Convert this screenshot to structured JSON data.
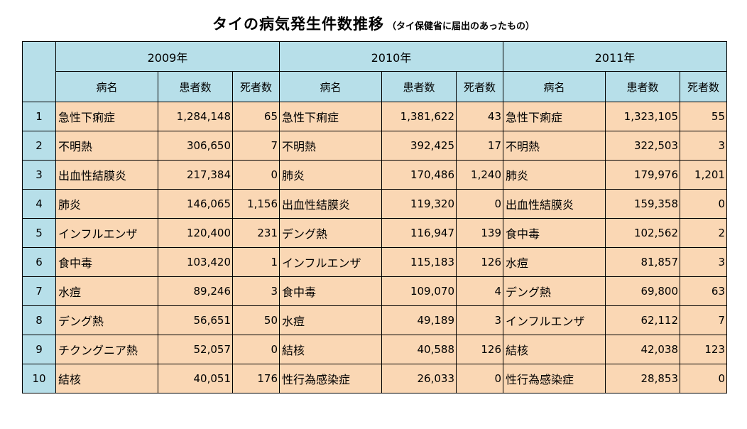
{
  "title": "タイの病気発生件数推移",
  "subtitle": "（タイ保健省に届出のあったもの）",
  "years": [
    "2009年",
    "2010年",
    "2011年"
  ],
  "col_headers": {
    "disease": "病名",
    "patients": "患者数",
    "deaths": "死者数"
  },
  "rows": [
    {
      "rank": "1",
      "y2009": {
        "name": "急性下痢症",
        "patients": "1,284,148",
        "deaths": "65"
      },
      "y2010": {
        "name": "急性下痢症",
        "patients": "1,381,622",
        "deaths": "43"
      },
      "y2011": {
        "name": "急性下痢症",
        "patients": "1,323,105",
        "deaths": "55"
      }
    },
    {
      "rank": "2",
      "y2009": {
        "name": "不明熱",
        "patients": "306,650",
        "deaths": "7"
      },
      "y2010": {
        "name": "不明熱",
        "patients": "392,425",
        "deaths": "17"
      },
      "y2011": {
        "name": "不明熱",
        "patients": "322,503",
        "deaths": "3"
      }
    },
    {
      "rank": "3",
      "y2009": {
        "name": "出血性結膜炎",
        "patients": "217,384",
        "deaths": "0"
      },
      "y2010": {
        "name": "肺炎",
        "patients": "170,486",
        "deaths": "1,240"
      },
      "y2011": {
        "name": "肺炎",
        "patients": "179,976",
        "deaths": "1,201"
      }
    },
    {
      "rank": "4",
      "y2009": {
        "name": "肺炎",
        "patients": "146,065",
        "deaths": "1,156"
      },
      "y2010": {
        "name": "出血性結膜炎",
        "patients": "119,320",
        "deaths": "0"
      },
      "y2011": {
        "name": "出血性結膜炎",
        "patients": "159,358",
        "deaths": "0"
      }
    },
    {
      "rank": "5",
      "y2009": {
        "name": "インフルエンザ",
        "patients": "120,400",
        "deaths": "231"
      },
      "y2010": {
        "name": "デング熱",
        "patients": "116,947",
        "deaths": "139"
      },
      "y2011": {
        "name": "食中毒",
        "patients": "102,562",
        "deaths": "2"
      }
    },
    {
      "rank": "6",
      "y2009": {
        "name": "食中毒",
        "patients": "103,420",
        "deaths": "1"
      },
      "y2010": {
        "name": "インフルエンザ",
        "patients": "115,183",
        "deaths": "126"
      },
      "y2011": {
        "name": "水痘",
        "patients": "81,857",
        "deaths": "3"
      }
    },
    {
      "rank": "7",
      "y2009": {
        "name": "水痘",
        "patients": "89,246",
        "deaths": "3"
      },
      "y2010": {
        "name": "食中毒",
        "patients": "109,070",
        "deaths": "4"
      },
      "y2011": {
        "name": "デング熱",
        "patients": "69,800",
        "deaths": "63"
      }
    },
    {
      "rank": "8",
      "y2009": {
        "name": "デング熱",
        "patients": "56,651",
        "deaths": "50"
      },
      "y2010": {
        "name": "水痘",
        "patients": "49,189",
        "deaths": "3"
      },
      "y2011": {
        "name": "インフルエンザ",
        "patients": "62,112",
        "deaths": "7"
      }
    },
    {
      "rank": "9",
      "y2009": {
        "name": "チクングニア熱",
        "patients": "52,057",
        "deaths": "0"
      },
      "y2010": {
        "name": "結核",
        "patients": "40,588",
        "deaths": "126"
      },
      "y2011": {
        "name": "結核",
        "patients": "42,038",
        "deaths": "123"
      }
    },
    {
      "rank": "10",
      "y2009": {
        "name": "結核",
        "patients": "40,051",
        "deaths": "176"
      },
      "y2010": {
        "name": "性行為感染症",
        "patients": "26,033",
        "deaths": "0"
      },
      "y2011": {
        "name": "性行為感染症",
        "patients": "28,853",
        "deaths": "0"
      }
    }
  ]
}
